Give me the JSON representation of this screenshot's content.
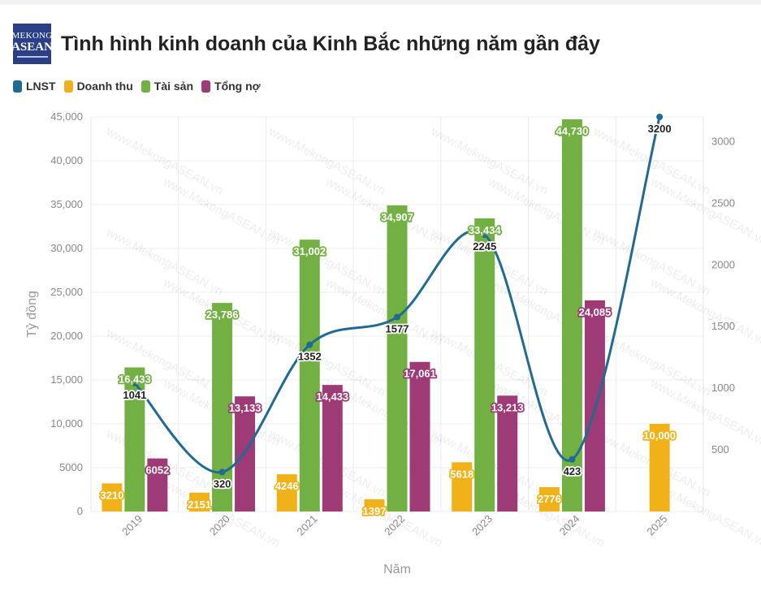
{
  "header": {
    "logo_line1": "MEKONG",
    "logo_line2": "ASEAN",
    "title": "Tình hình kinh doanh của Kinh Bắc những năm gần đây"
  },
  "watermark": "www.MekongASEAN.vn",
  "colors": {
    "LNST": "#1f6b94",
    "Doanh thu": "#f1b219",
    "Tài sản": "#72b043",
    "Tổng nợ": "#9e3a75"
  },
  "chart_data": {
    "type": "bar",
    "categories": [
      "2019",
      "2020",
      "2021",
      "2022",
      "2023",
      "2024",
      "2025"
    ],
    "series": [
      {
        "name": "Doanh thu",
        "type": "bar",
        "axis": "left",
        "values": [
          3210,
          2151,
          4246,
          1397,
          5618,
          2776,
          10000
        ],
        "labels": [
          "3210",
          "2151",
          "4246",
          "1397",
          "5618",
          "2776",
          "10,000"
        ]
      },
      {
        "name": "Tài sản",
        "type": "bar",
        "axis": "left",
        "values": [
          16433,
          23786,
          31002,
          34907,
          33434,
          44730,
          null
        ],
        "labels": [
          "16,433",
          "23,786",
          "31,002",
          "34,907",
          "33,434",
          "44,730",
          null
        ]
      },
      {
        "name": "Tổng nợ",
        "type": "bar",
        "axis": "left",
        "values": [
          6052,
          13133,
          14433,
          17061,
          13213,
          24085,
          null
        ],
        "labels": [
          "6052",
          "13,133",
          "14,433",
          "17,061",
          "13,213",
          "24,085",
          null
        ]
      },
      {
        "name": "LNST",
        "type": "line",
        "axis": "right",
        "values": [
          1041,
          320,
          1352,
          1577,
          2245,
          423,
          3200
        ],
        "labels": [
          "1041",
          "320",
          "1352",
          "1577",
          "2245",
          "423",
          "3200"
        ]
      }
    ],
    "legend_order": [
      "LNST",
      "Doanh thu",
      "Tài sản",
      "Tổng nợ"
    ],
    "legend_position": "top-left",
    "xlabel": "Năm",
    "ylabel": "Tỷ đồng",
    "ylim": [
      0,
      45000
    ],
    "y_ticks": [
      "0",
      "5000",
      "10,000",
      "15,000",
      "20,000",
      "25,000",
      "30,000",
      "35,000",
      "40,000",
      "45,000"
    ],
    "y2lim": [
      0,
      3200
    ],
    "y2_ticks": [
      "500",
      "1000",
      "1500",
      "2000",
      "2500",
      "3000"
    ],
    "grid": true
  }
}
